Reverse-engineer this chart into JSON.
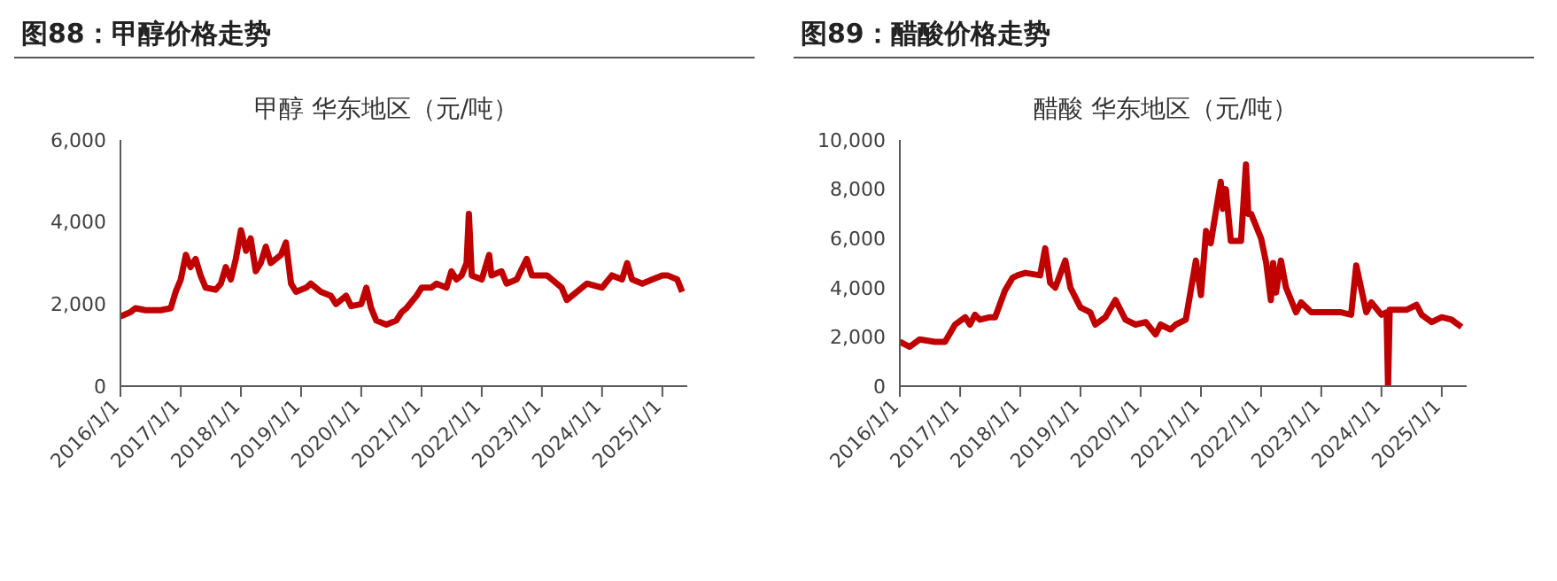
{
  "chart_data": [
    {
      "type": "line",
      "title": "图88：甲醇价格走势",
      "subtitle": "甲醇 华东地区（元/吨）",
      "color": "#c00000",
      "marker": "none",
      "grid": false,
      "legend": false,
      "x": [
        "2016-01-01",
        "2016-03-01",
        "2016-04-01",
        "2016-06-01",
        "2016-09-01",
        "2016-11-01",
        "2016-12-01",
        "2017-01-01",
        "2017-02-01",
        "2017-03-01",
        "2017-04-01",
        "2017-05-01",
        "2017-06-01",
        "2017-08-01",
        "2017-09-01",
        "2017-10-01",
        "2017-11-01",
        "2017-12-01",
        "2018-01-01",
        "2018-02-01",
        "2018-03-01",
        "2018-04-01",
        "2018-05-01",
        "2018-06-01",
        "2018-07-01",
        "2018-09-01",
        "2018-10-01",
        "2018-11-01",
        "2018-12-01",
        "2019-02-01",
        "2019-03-01",
        "2019-05-01",
        "2019-07-01",
        "2019-08-01",
        "2019-10-01",
        "2019-11-01",
        "2020-01-01",
        "2020-02-01",
        "2020-03-01",
        "2020-04-01",
        "2020-06-01",
        "2020-08-01",
        "2020-09-01",
        "2020-10-01",
        "2020-12-01",
        "2021-01-01",
        "2021-03-01",
        "2021-04-01",
        "2021-06-01",
        "2021-07-01",
        "2021-08-01",
        "2021-09-01",
        "2021-10-01",
        "2021-10-15",
        "2021-11-01",
        "2022-01-01",
        "2022-02-15",
        "2022-03-01",
        "2022-05-01",
        "2022-06-01",
        "2022-08-01",
        "2022-10-01",
        "2022-11-01",
        "2023-02-01",
        "2023-04-01",
        "2023-05-01",
        "2023-06-01",
        "2023-08-01",
        "2023-10-01",
        "2024-01-01",
        "2024-03-01",
        "2024-05-01",
        "2024-06-01",
        "2024-07-01",
        "2024-09-01",
        "2024-11-01",
        "2025-01-01",
        "2025-02-01",
        "2025-04-01",
        "2025-05-01"
      ],
      "values": [
        1700,
        1800,
        1900,
        1850,
        1850,
        1900,
        2300,
        2600,
        3200,
        2900,
        3100,
        2700,
        2400,
        2350,
        2500,
        2900,
        2600,
        3100,
        3800,
        3300,
        3600,
        2800,
        3000,
        3400,
        3000,
        3200,
        3500,
        2500,
        2300,
        2400,
        2500,
        2300,
        2200,
        2000,
        2200,
        1950,
        2000,
        2400,
        1900,
        1600,
        1500,
        1600,
        1800,
        1900,
        2200,
        2400,
        2400,
        2500,
        2400,
        2800,
        2600,
        2700,
        3000,
        4200,
        2700,
        2600,
        3200,
        2700,
        2800,
        2500,
        2600,
        3100,
        2700,
        2700,
        2500,
        2400,
        2100,
        2300,
        2500,
        2400,
        2700,
        2600,
        3000,
        2600,
        2500,
        2600,
        2700,
        2700,
        2600,
        2300
      ],
      "xlim": [
        "2016-01-01",
        "2025-06-01"
      ],
      "xticks": [
        {
          "value": "2016-01-01",
          "label": "2016/1/1"
        },
        {
          "value": "2017-01-01",
          "label": "2017/1/1"
        },
        {
          "value": "2018-01-01",
          "label": "2018/1/1"
        },
        {
          "value": "2019-01-01",
          "label": "2019/1/1"
        },
        {
          "value": "2020-01-01",
          "label": "2020/1/1"
        },
        {
          "value": "2021-01-01",
          "label": "2021/1/1"
        },
        {
          "value": "2022-01-01",
          "label": "2022/1/1"
        },
        {
          "value": "2023-01-01",
          "label": "2023/1/1"
        },
        {
          "value": "2024-01-01",
          "label": "2024/1/1"
        },
        {
          "value": "2025-01-01",
          "label": "2025/1/1"
        }
      ],
      "ylim": [
        0,
        6000
      ],
      "yticks": [
        {
          "value": 0,
          "label": "0"
        },
        {
          "value": 2000,
          "label": "2,000"
        },
        {
          "value": 4000,
          "label": "4,000"
        },
        {
          "value": 6000,
          "label": "6,000"
        }
      ]
    },
    {
      "type": "line",
      "title": "图89：醋酸价格走势",
      "subtitle": "醋酸 华东地区（元/吨）",
      "color": "#c00000",
      "marker": "none",
      "grid": false,
      "legend": false,
      "x": [
        "2016-01-01",
        "2016-03-01",
        "2016-05-01",
        "2016-08-01",
        "2016-10-01",
        "2016-12-01",
        "2017-02-01",
        "2017-03-01",
        "2017-04-01",
        "2017-05-01",
        "2017-07-01",
        "2017-08-01",
        "2017-10-01",
        "2017-11-15",
        "2017-12-15",
        "2018-02-01",
        "2018-05-01",
        "2018-06-01",
        "2018-07-01",
        "2018-08-01",
        "2018-10-01",
        "2018-11-01",
        "2019-01-01",
        "2019-03-01",
        "2019-04-01",
        "2019-06-01",
        "2019-08-01",
        "2019-10-01",
        "2019-12-01",
        "2020-02-01",
        "2020-04-01",
        "2020-05-01",
        "2020-07-01",
        "2020-08-01",
        "2020-10-01",
        "2020-12-01",
        "2021-01-01",
        "2021-02-01",
        "2021-03-01",
        "2021-05-01",
        "2021-05-15",
        "2021-06-01",
        "2021-07-01",
        "2021-09-01",
        "2021-10-01",
        "2021-10-15",
        "2021-11-01",
        "2022-01-01",
        "2022-02-01",
        "2022-03-01",
        "2022-03-15",
        "2022-04-01",
        "2022-05-01",
        "2022-06-01",
        "2022-08-01",
        "2022-09-01",
        "2022-11-01",
        "2023-02-01",
        "2023-05-01",
        "2023-07-01",
        "2023-08-01",
        "2023-10-01",
        "2023-11-01",
        "2024-01-01",
        "2024-02-01",
        "2024-02-10",
        "2024-02-20",
        "2024-04-01",
        "2024-06-01",
        "2024-08-01",
        "2024-09-01",
        "2024-11-01",
        "2025-01-01",
        "2025-03-01",
        "2025-05-01"
      ],
      "values": [
        1800,
        1600,
        1900,
        1800,
        1800,
        2500,
        2800,
        2500,
        2900,
        2700,
        2800,
        2800,
        3900,
        4400,
        4500,
        4600,
        4500,
        5600,
        4200,
        4000,
        5100,
        4000,
        3200,
        3000,
        2500,
        2800,
        3500,
        2700,
        2500,
        2600,
        2100,
        2500,
        2300,
        2500,
        2700,
        5100,
        3700,
        6300,
        5800,
        8300,
        7200,
        8000,
        5900,
        5900,
        9000,
        7000,
        7000,
        6000,
        5000,
        3500,
        5000,
        3800,
        5100,
        4000,
        3000,
        3400,
        3000,
        3000,
        3000,
        2900,
        4900,
        3000,
        3400,
        2900,
        3000,
        0,
        3100,
        3100,
        3100,
        3300,
        2900,
        2600,
        2800,
        2700,
        2400
      ],
      "xlim": [
        "2016-01-01",
        "2025-06-01"
      ],
      "xticks": [
        {
          "value": "2016-01-01",
          "label": "2016/1/1"
        },
        {
          "value": "2017-01-01",
          "label": "2017/1/1"
        },
        {
          "value": "2018-01-01",
          "label": "2018/1/1"
        },
        {
          "value": "2019-01-01",
          "label": "2019/1/1"
        },
        {
          "value": "2020-01-01",
          "label": "2020/1/1"
        },
        {
          "value": "2021-01-01",
          "label": "2021/1/1"
        },
        {
          "value": "2022-01-01",
          "label": "2022/1/1"
        },
        {
          "value": "2023-01-01",
          "label": "2023/1/1"
        },
        {
          "value": "2024-01-01",
          "label": "2024/1/1"
        },
        {
          "value": "2025-01-01",
          "label": "2025/1/1"
        }
      ],
      "ylim": [
        0,
        10000
      ],
      "yticks": [
        {
          "value": 0,
          "label": "0"
        },
        {
          "value": 2000,
          "label": "2,000"
        },
        {
          "value": 4000,
          "label": "4,000"
        },
        {
          "value": 6000,
          "label": "6,000"
        },
        {
          "value": 8000,
          "label": "8,000"
        },
        {
          "value": 10000,
          "label": "10,000"
        }
      ]
    }
  ]
}
